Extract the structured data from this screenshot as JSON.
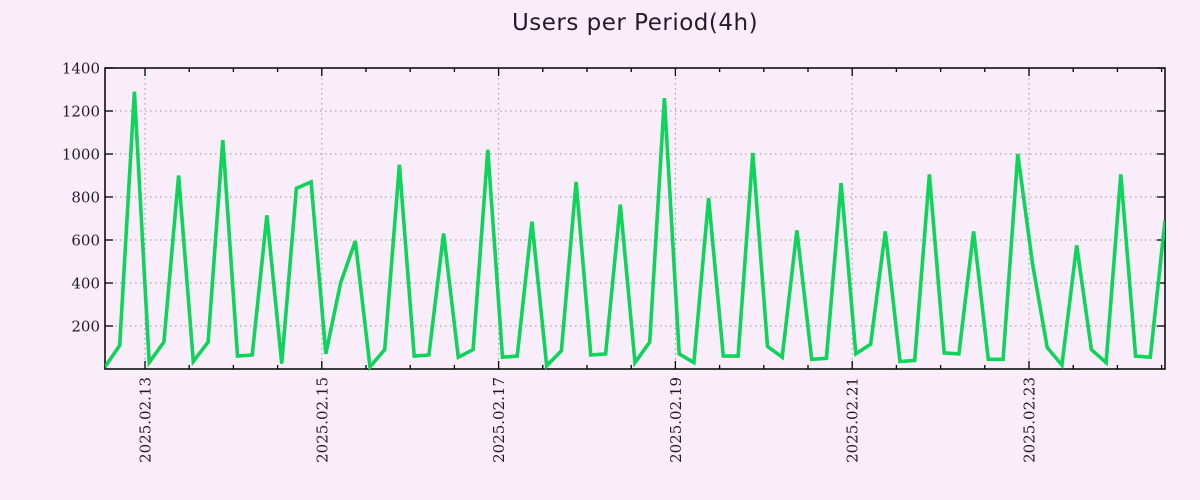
{
  "chart_data": {
    "type": "line",
    "title": "Users per Period(4h)",
    "xlabel": "",
    "ylabel": "",
    "ylim": [
      0,
      1400
    ],
    "y_ticks": [
      200,
      400,
      600,
      800,
      1000,
      1200,
      1400
    ],
    "x_tick_labels": [
      "2025.02.13",
      "2025.02.15",
      "2025.02.17",
      "2025.02.19",
      "2025.02.21",
      "2025.02.23"
    ],
    "x_major_interval": "2 days",
    "x_minor_interval": "12 hours",
    "period_hours": 4,
    "grid": true,
    "legend_position": "none",
    "colors": {
      "background": "#f8edf8",
      "grid": "#999999",
      "axis": "#000000",
      "text": "#231b28"
    },
    "series": [
      {
        "name": "users",
        "color": "#0ed45c",
        "values": [
          10,
          110,
          1290,
          30,
          125,
          900,
          35,
          125,
          1065,
          60,
          65,
          715,
          25,
          840,
          870,
          70,
          400,
          595,
          10,
          90,
          950,
          60,
          65,
          630,
          55,
          90,
          1020,
          55,
          60,
          685,
          15,
          85,
          870,
          65,
          70,
          765,
          30,
          125,
          1260,
          70,
          30,
          795,
          60,
          60,
          1005,
          105,
          55,
          645,
          45,
          50,
          865,
          70,
          115,
          640,
          35,
          40,
          905,
          75,
          70,
          640,
          45,
          45,
          1000,
          490,
          100,
          18,
          575,
          90,
          30,
          905,
          60,
          55,
          690
        ]
      }
    ]
  }
}
